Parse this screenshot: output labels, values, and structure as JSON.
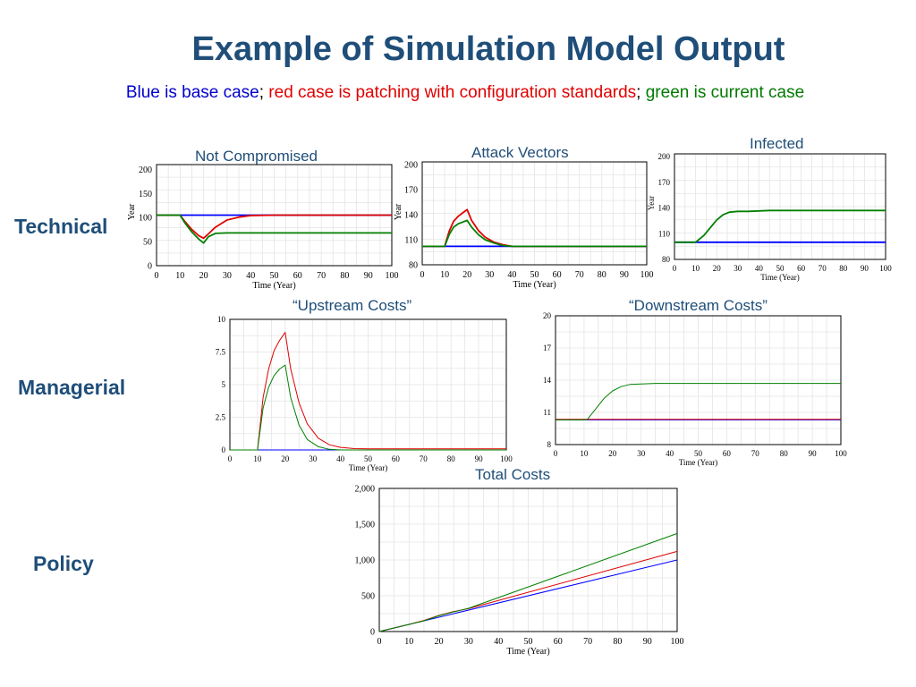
{
  "slide": {
    "title": "Example of Simulation Model Output",
    "subtitle": {
      "blue": "Blue is base case",
      "sep1": ";",
      "red": " red case is patching with configuration standards",
      "sep2": ";",
      "green": " green is current case"
    },
    "rows": [
      "Technical",
      "Managerial",
      "Policy"
    ]
  },
  "colors": {
    "base": "#0000ff",
    "patching": "#e00000",
    "current": "#008000",
    "title": "#1f4e79"
  },
  "chart_data": [
    {
      "id": "not-compromised",
      "type": "line",
      "title": "Not Compromised",
      "xlabel": "Time (Year)",
      "ylabel": "Year",
      "xlim": [
        0,
        100
      ],
      "ylim": [
        0,
        210
      ],
      "xticks": [
        "0",
        "10",
        "20",
        "30",
        "40",
        "50",
        "60",
        "70",
        "80",
        "90",
        "100"
      ],
      "yticks": [
        {
          "v": 0,
          "t": "0"
        },
        {
          "v": 50,
          "t": "50"
        },
        {
          "v": 100,
          "t": "100"
        },
        {
          "v": 150,
          "t": "150"
        },
        {
          "v": 200,
          "t": "200"
        }
      ],
      "series": [
        {
          "color": "#0000ff",
          "width": 1.8,
          "x": [
            0,
            100
          ],
          "y": [
            105,
            105
          ]
        },
        {
          "color": "#e00000",
          "width": 1.8,
          "x": [
            0,
            10,
            12,
            15,
            18,
            20,
            22,
            25,
            30,
            35,
            40,
            50,
            100
          ],
          "y": [
            105,
            105,
            92,
            75,
            62,
            57,
            66,
            80,
            95,
            101,
            104,
            105,
            105
          ]
        },
        {
          "color": "#008000",
          "width": 1.8,
          "x": [
            0,
            10,
            12,
            15,
            18,
            20,
            22,
            25,
            30,
            40,
            100
          ],
          "y": [
            105,
            105,
            89,
            70,
            55,
            47,
            60,
            67,
            68,
            68,
            68
          ]
        }
      ]
    },
    {
      "id": "attack-vectors",
      "type": "line",
      "title": "Attack Vectors",
      "xlabel": "Time (Year)",
      "ylabel": "Year",
      "xlim": [
        0,
        100
      ],
      "ylim": [
        80,
        203
      ],
      "xticks": [
        "0",
        "10",
        "20",
        "30",
        "40",
        "50",
        "60",
        "70",
        "80",
        "90",
        "100"
      ],
      "yticks": [
        {
          "v": 80,
          "t": "80"
        },
        {
          "v": 110,
          "t": "110"
        },
        {
          "v": 140,
          "t": "140"
        },
        {
          "v": 170,
          "t": "170"
        },
        {
          "v": 200,
          "t": "200"
        }
      ],
      "series": [
        {
          "color": "#0000ff",
          "width": 1.8,
          "x": [
            0,
            100
          ],
          "y": [
            102,
            102
          ]
        },
        {
          "color": "#e00000",
          "width": 1.8,
          "x": [
            0,
            10,
            12,
            14,
            16,
            18,
            20,
            22,
            25,
            28,
            32,
            36,
            40,
            100
          ],
          "y": [
            102,
            102,
            120,
            132,
            138,
            142,
            146,
            133,
            121,
            113,
            107,
            104,
            102,
            102
          ]
        },
        {
          "color": "#008000",
          "width": 1.8,
          "x": [
            0,
            10,
            12,
            14,
            16,
            18,
            20,
            22,
            25,
            28,
            32,
            36,
            40,
            100
          ],
          "y": [
            102,
            102,
            116,
            125,
            129,
            131,
            133,
            125,
            116,
            110,
            106,
            103,
            102,
            102
          ]
        }
      ]
    },
    {
      "id": "infected",
      "type": "line",
      "title": "Infected",
      "xlabel": "Time (Year)",
      "ylabel": "Year",
      "xlim": [
        0,
        100
      ],
      "ylim": [
        80,
        203
      ],
      "xticks": [
        "0",
        "10",
        "20",
        "30",
        "40",
        "50",
        "60",
        "70",
        "80",
        "90",
        "100"
      ],
      "yticks": [
        {
          "v": 80,
          "t": "80"
        },
        {
          "v": 110,
          "t": "110"
        },
        {
          "v": 140,
          "t": "140"
        },
        {
          "v": 170,
          "t": "170"
        },
        {
          "v": 200,
          "t": "200"
        }
      ],
      "series": [
        {
          "color": "#0000ff",
          "width": 1.8,
          "x": [
            0,
            100
          ],
          "y": [
            100,
            100
          ]
        },
        {
          "color": "#008000",
          "width": 1.8,
          "x": [
            0,
            10,
            14,
            17,
            20,
            23,
            26,
            30,
            35,
            45,
            100
          ],
          "y": [
            100,
            100,
            108,
            117,
            126,
            132,
            135,
            136,
            136,
            137,
            137
          ]
        }
      ]
    },
    {
      "id": "upstream-costs",
      "type": "line",
      "title": "“Upstream Costs”",
      "xlabel": "Time (Year)",
      "xlim": [
        0,
        100
      ],
      "ylim": [
        0,
        10
      ],
      "xticks": [
        "0",
        "10",
        "20",
        "30",
        "40",
        "50",
        "60",
        "70",
        "80",
        "90",
        "100"
      ],
      "yticks": [
        {
          "v": 0,
          "t": "0"
        },
        {
          "v": 2.5,
          "t": "2.5"
        },
        {
          "v": 5,
          "t": "5"
        },
        {
          "v": 7.5,
          "t": "7.5"
        },
        {
          "v": 10,
          "t": "10"
        }
      ],
      "series": [
        {
          "color": "#0000ff",
          "width": 1,
          "x": [
            0,
            100
          ],
          "y": [
            0,
            0
          ]
        },
        {
          "color": "#e00000",
          "width": 1,
          "x": [
            0,
            10,
            12,
            14,
            16,
            18,
            20,
            22,
            25,
            28,
            32,
            36,
            40,
            45,
            50,
            100
          ],
          "y": [
            0,
            0,
            4,
            6.2,
            7.6,
            8.4,
            9,
            6.2,
            3.6,
            2,
            0.9,
            0.4,
            0.2,
            0.1,
            0.08,
            0.08
          ]
        },
        {
          "color": "#008000",
          "width": 1,
          "x": [
            0,
            10,
            12,
            14,
            16,
            18,
            20,
            22,
            25,
            28,
            32,
            36,
            40,
            100
          ],
          "y": [
            0,
            0,
            3.2,
            4.8,
            5.7,
            6.2,
            6.5,
            4,
            1.9,
            0.8,
            0.25,
            0.05,
            0,
            0
          ]
        }
      ]
    },
    {
      "id": "downstream-costs",
      "type": "line",
      "title": "“Downstream Costs”",
      "xlabel": "Time (Year)",
      "xlim": [
        0,
        100
      ],
      "ylim": [
        8,
        20
      ],
      "xticks": [
        "0",
        "10",
        "20",
        "30",
        "40",
        "50",
        "60",
        "70",
        "80",
        "90",
        "100"
      ],
      "yticks": [
        {
          "v": 8,
          "t": "8"
        },
        {
          "v": 11,
          "t": "11"
        },
        {
          "v": 14,
          "t": "14"
        },
        {
          "v": 17,
          "t": "17"
        },
        {
          "v": 20,
          "t": "20"
        }
      ],
      "series": [
        {
          "color": "#0000ff",
          "width": 1,
          "x": [
            0,
            100
          ],
          "y": [
            10.3,
            10.3
          ]
        },
        {
          "color": "#e00000",
          "width": 1,
          "x": [
            0,
            100
          ],
          "y": [
            10.35,
            10.35
          ]
        },
        {
          "color": "#008000",
          "width": 1,
          "x": [
            0,
            11,
            14,
            17,
            20,
            23,
            26,
            30,
            35,
            100
          ],
          "y": [
            10.3,
            10.3,
            11.3,
            12.3,
            13.0,
            13.4,
            13.6,
            13.65,
            13.7,
            13.7
          ]
        }
      ]
    },
    {
      "id": "total-costs",
      "type": "line",
      "title": "Total Costs",
      "xlabel": "Time (Year)",
      "xlim": [
        0,
        100
      ],
      "ylim": [
        0,
        2000
      ],
      "xticks": [
        "0",
        "10",
        "20",
        "30",
        "40",
        "50",
        "60",
        "70",
        "80",
        "90",
        "100"
      ],
      "yticks": [
        {
          "v": 0,
          "t": "0"
        },
        {
          "v": 500,
          "t": "500"
        },
        {
          "v": 1000,
          "t": "1,000"
        },
        {
          "v": 1500,
          "t": "1,500"
        },
        {
          "v": 2000,
          "t": "2,000"
        }
      ],
      "series": [
        {
          "color": "#0000ff",
          "width": 1,
          "x": [
            0,
            10,
            100
          ],
          "y": [
            0,
            100,
            1000
          ]
        },
        {
          "color": "#e00000",
          "width": 1,
          "x": [
            0,
            10,
            15,
            20,
            25,
            30,
            100
          ],
          "y": [
            0,
            100,
            155,
            225,
            280,
            320,
            1120
          ]
        },
        {
          "color": "#008000",
          "width": 1,
          "x": [
            0,
            10,
            15,
            20,
            25,
            30,
            100
          ],
          "y": [
            0,
            100,
            150,
            220,
            275,
            325,
            1370
          ]
        }
      ]
    }
  ]
}
